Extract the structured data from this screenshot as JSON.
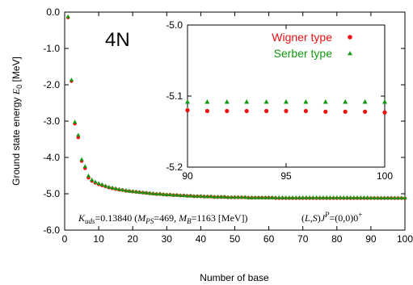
{
  "chart_data": [
    {
      "type": "scatter",
      "title": "",
      "annotation": "4N",
      "xlabel": "Number of base",
      "ylabel_prefix": "Ground state energy ",
      "ylabel_symbol": "E",
      "ylabel_sub": "0",
      "ylabel_unit": " [MeV]",
      "xlim": [
        0,
        100
      ],
      "ylim": [
        -6.0,
        0.0
      ],
      "xticks": [
        "0",
        "10",
        "20",
        "30",
        "40",
        "50",
        "60",
        "70",
        "80",
        "90",
        "100"
      ],
      "yticks": [
        "0.0",
        "-1.0",
        "-2.0",
        "-3.0",
        "-4.0",
        "-5.0",
        "-6.0"
      ],
      "grid": false,
      "legend_position": "inset",
      "series": [
        {
          "name": "Wigner type",
          "color": "#ee1111",
          "marker": "circle",
          "x": [
            1,
            2,
            3,
            4,
            5,
            6,
            7,
            8,
            9,
            10,
            11,
            12,
            13,
            14,
            15,
            16,
            17,
            18,
            19,
            20,
            21,
            22,
            23,
            24,
            25,
            26,
            27,
            28,
            29,
            30,
            31,
            32,
            33,
            34,
            35,
            36,
            37,
            38,
            39,
            40,
            41,
            42,
            43,
            44,
            45,
            46,
            47,
            48,
            49,
            50,
            51,
            52,
            53,
            54,
            55,
            56,
            57,
            58,
            59,
            60,
            61,
            62,
            63,
            64,
            65,
            66,
            67,
            68,
            69,
            70,
            71,
            72,
            73,
            74,
            75,
            76,
            77,
            78,
            79,
            80,
            81,
            82,
            83,
            84,
            85,
            86,
            87,
            88,
            89,
            90,
            91,
            92,
            93,
            94,
            95,
            96,
            97,
            98,
            99,
            100
          ],
          "y": [
            -0.15,
            -1.9,
            -3.07,
            -3.45,
            -4.1,
            -4.3,
            -4.56,
            -4.65,
            -4.7,
            -4.74,
            -4.77,
            -4.8,
            -4.83,
            -4.85,
            -4.87,
            -4.89,
            -4.9,
            -4.92,
            -4.93,
            -4.94,
            -4.95,
            -4.96,
            -4.97,
            -4.98,
            -4.99,
            -5.0,
            -5.01,
            -5.01,
            -5.02,
            -5.03,
            -5.03,
            -5.04,
            -5.04,
            -5.05,
            -5.05,
            -5.06,
            -5.06,
            -5.07,
            -5.07,
            -5.07,
            -5.08,
            -5.08,
            -5.08,
            -5.09,
            -5.09,
            -5.09,
            -5.09,
            -5.1,
            -5.1,
            -5.1,
            -5.1,
            -5.1,
            -5.1,
            -5.11,
            -5.11,
            -5.11,
            -5.11,
            -5.11,
            -5.11,
            -5.11,
            -5.11,
            -5.12,
            -5.12,
            -5.12,
            -5.12,
            -5.12,
            -5.12,
            -5.12,
            -5.12,
            -5.12,
            -5.12,
            -5.12,
            -5.12,
            -5.12,
            -5.12,
            -5.12,
            -5.12,
            -5.12,
            -5.12,
            -5.12,
            -5.12,
            -5.12,
            -5.12,
            -5.12,
            -5.12,
            -5.12,
            -5.12,
            -5.12,
            -5.12,
            -5.12,
            -5.121,
            -5.121,
            -5.121,
            -5.121,
            -5.121,
            -5.121,
            -5.122,
            -5.122,
            -5.122,
            -5.123
          ]
        },
        {
          "name": "Serber type",
          "color": "#119911",
          "marker": "triangle",
          "x": [
            1,
            2,
            3,
            4,
            5,
            6,
            7,
            8,
            9,
            10,
            11,
            12,
            13,
            14,
            15,
            16,
            17,
            18,
            19,
            20,
            21,
            22,
            23,
            24,
            25,
            26,
            27,
            28,
            29,
            30,
            31,
            32,
            33,
            34,
            35,
            36,
            37,
            38,
            39,
            40,
            41,
            42,
            43,
            44,
            45,
            46,
            47,
            48,
            49,
            50,
            51,
            52,
            53,
            54,
            55,
            56,
            57,
            58,
            59,
            60,
            61,
            62,
            63,
            64,
            65,
            66,
            67,
            68,
            69,
            70,
            71,
            72,
            73,
            74,
            75,
            76,
            77,
            78,
            79,
            80,
            81,
            82,
            83,
            84,
            85,
            86,
            87,
            88,
            89,
            90,
            91,
            92,
            93,
            94,
            95,
            96,
            97,
            98,
            99,
            100
          ],
          "y": [
            -0.12,
            -1.86,
            -3.02,
            -3.38,
            -4.05,
            -4.24,
            -4.5,
            -4.61,
            -4.67,
            -4.71,
            -4.74,
            -4.78,
            -4.81,
            -4.83,
            -4.85,
            -4.87,
            -4.89,
            -4.9,
            -4.92,
            -4.93,
            -4.94,
            -4.95,
            -4.96,
            -4.97,
            -4.98,
            -4.99,
            -5.0,
            -5.0,
            -5.01,
            -5.02,
            -5.02,
            -5.03,
            -5.03,
            -5.04,
            -5.04,
            -5.05,
            -5.05,
            -5.06,
            -5.06,
            -5.06,
            -5.07,
            -5.07,
            -5.07,
            -5.08,
            -5.08,
            -5.08,
            -5.08,
            -5.09,
            -5.09,
            -5.09,
            -5.09,
            -5.09,
            -5.09,
            -5.1,
            -5.1,
            -5.1,
            -5.1,
            -5.1,
            -5.1,
            -5.1,
            -5.1,
            -5.1,
            -5.1,
            -5.1,
            -5.1,
            -5.1,
            -5.1,
            -5.1,
            -5.1,
            -5.1,
            -5.1,
            -5.1,
            -5.1,
            -5.1,
            -5.1,
            -5.1,
            -5.1,
            -5.1,
            -5.1,
            -5.1,
            -5.1,
            -5.1,
            -5.1,
            -5.1,
            -5.1,
            -5.1,
            -5.1,
            -5.1,
            -5.1,
            -5.11,
            -5.11,
            -5.11,
            -5.11,
            -5.11,
            -5.11,
            -5.11,
            -5.11,
            -5.11,
            -5.11,
            -5.11
          ]
        }
      ]
    },
    {
      "type": "scatter",
      "title": "",
      "xlabel": "",
      "ylabel": "",
      "xlim": [
        90,
        100
      ],
      "ylim": [
        -5.2,
        -5.0
      ],
      "xticks": [
        "90",
        "95",
        "100"
      ],
      "yticks": [
        "-5.0",
        "-5.1",
        "-5.2"
      ],
      "grid": false,
      "series": [
        {
          "name": "Wigner type",
          "color": "#ee1111",
          "marker": "circle",
          "x": [
            90,
            91,
            92,
            93,
            94,
            95,
            96,
            97,
            98,
            99,
            100
          ],
          "y": [
            -5.12,
            -5.121,
            -5.121,
            -5.121,
            -5.121,
            -5.121,
            -5.121,
            -5.122,
            -5.122,
            -5.122,
            -5.123
          ]
        },
        {
          "name": "Serber type",
          "color": "#119911",
          "marker": "triangle",
          "x": [
            90,
            91,
            92,
            93,
            94,
            95,
            96,
            97,
            98,
            99,
            100
          ],
          "y": [
            -5.108,
            -5.108,
            -5.108,
            -5.108,
            -5.108,
            -5.108,
            -5.108,
            -5.108,
            -5.108,
            -5.108,
            -5.108
          ]
        }
      ]
    }
  ],
  "footnote_left": {
    "k_symbol": "K",
    "k_sub": "uds",
    "k_value": "=0.13840 (",
    "mps_symbol": "M",
    "mps_sub": "PS",
    "mps_value": "=469, ",
    "mb_symbol": "M",
    "mb_sub": "B",
    "mb_value": "=1163 [MeV])"
  },
  "footnote_right": {
    "open": "(",
    "l": "L",
    "comma": ",",
    "s": "S",
    "close": ")",
    "j": "J",
    "p": "P",
    "eq": "=(0,0)0",
    "plus": "+"
  }
}
